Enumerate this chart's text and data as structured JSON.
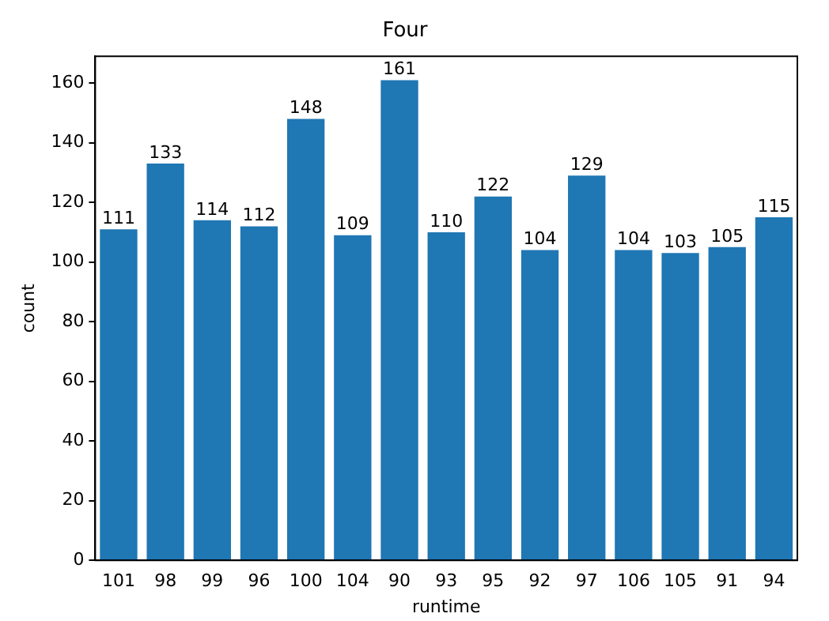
{
  "chart_data": {
    "type": "bar",
    "title": "Four",
    "xlabel": "runtime",
    "ylabel": "count",
    "categories": [
      "101",
      "98",
      "99",
      "96",
      "100",
      "104",
      "90",
      "93",
      "95",
      "92",
      "97",
      "106",
      "105",
      "91",
      "94"
    ],
    "values": [
      111,
      133,
      114,
      112,
      148,
      109,
      161,
      110,
      122,
      104,
      129,
      104,
      103,
      105,
      115
    ],
    "color": "#1f77b4",
    "ylim": [
      0,
      169
    ],
    "yticks": [
      0,
      20,
      40,
      60,
      80,
      100,
      120,
      140,
      160
    ],
    "grid": false,
    "data_labels": true
  }
}
